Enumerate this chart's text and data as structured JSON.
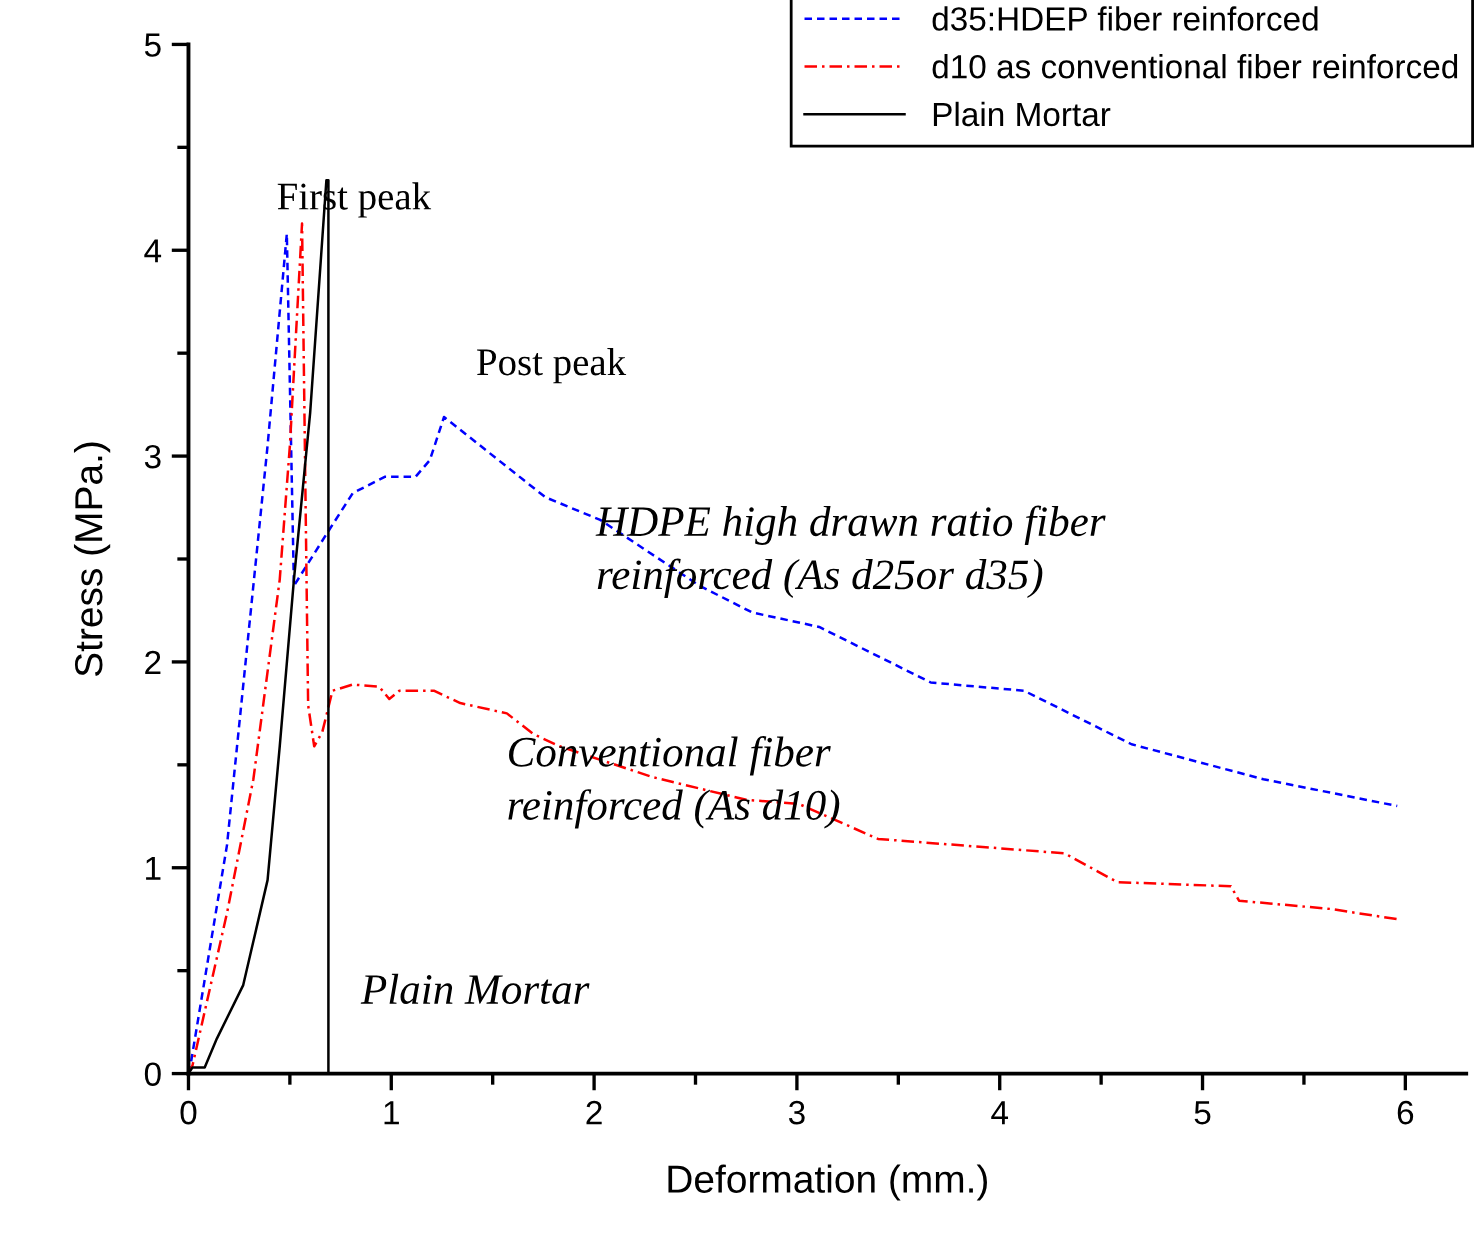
{
  "chart_data": {
    "type": "line",
    "xlabel": "Deformation (mm.)",
    "ylabel": "Stress (MPa.)",
    "xlim": [
      0,
      6.3
    ],
    "ylim": [
      0,
      5
    ],
    "xticks": [
      0,
      1,
      2,
      3,
      4,
      5,
      6
    ],
    "yticks": [
      0,
      1,
      2,
      3,
      4,
      5
    ],
    "grid": false,
    "legend": "top right",
    "marker": "none",
    "series": [
      {
        "name": "d35:HDEP fiber reinforced",
        "color": "#0000ff",
        "line_style": "dashed",
        "x": [
          0.0,
          0.01,
          0.19,
          0.29,
          0.39,
          0.485,
          0.52,
          0.68,
          0.81,
          0.97,
          1.12,
          1.19,
          1.26,
          1.76,
          2.03,
          2.52,
          2.78,
          3.11,
          3.66,
          4.12,
          4.65,
          5.3,
          5.96
        ],
        "values": [
          0.0,
          0.04,
          1.11,
          2.08,
          3.05,
          4.08,
          2.37,
          2.62,
          2.82,
          2.9,
          2.9,
          2.98,
          3.19,
          2.8,
          2.69,
          2.37,
          2.24,
          2.17,
          1.9,
          1.86,
          1.6,
          1.43,
          1.3
        ]
      },
      {
        "name": "d10 as conventional fiber reinforced",
        "color": "#ff0000",
        "line_style": "dashdot",
        "x": [
          0.0,
          0.02,
          0.19,
          0.32,
          0.45,
          0.5,
          0.56,
          0.59,
          0.62,
          0.66,
          0.71,
          0.81,
          0.94,
          0.99,
          1.04,
          1.21,
          1.34,
          1.57,
          1.7,
          1.83,
          2.29,
          2.75,
          3.01,
          3.4,
          4.32,
          4.58,
          5.14,
          5.18,
          5.63,
          5.96
        ],
        "values": [
          0.0,
          0.04,
          0.78,
          1.43,
          2.4,
          3.05,
          4.13,
          1.79,
          1.59,
          1.66,
          1.86,
          1.89,
          1.88,
          1.82,
          1.86,
          1.86,
          1.8,
          1.75,
          1.65,
          1.59,
          1.44,
          1.33,
          1.31,
          1.14,
          1.07,
          0.93,
          0.91,
          0.84,
          0.8,
          0.75
        ]
      },
      {
        "name": "Plain Mortar",
        "color": "#000000",
        "line_style": "solid",
        "x": [
          0.0,
          0.02,
          0.08,
          0.14,
          0.27,
          0.39,
          0.45,
          0.52,
          0.6,
          0.68,
          0.69,
          0.69
        ],
        "values": [
          0.0,
          0.03,
          0.03,
          0.17,
          0.43,
          0.94,
          1.59,
          2.4,
          3.21,
          4.34,
          4.34,
          0.0
        ]
      }
    ],
    "annotations": [
      "First peak",
      "Post peak",
      "HDPE high drawn ratio fiber\nreinforced (As d25or d35)",
      "Conventional fiber\nreinforced (As d10)",
      "Plain Mortar"
    ]
  }
}
